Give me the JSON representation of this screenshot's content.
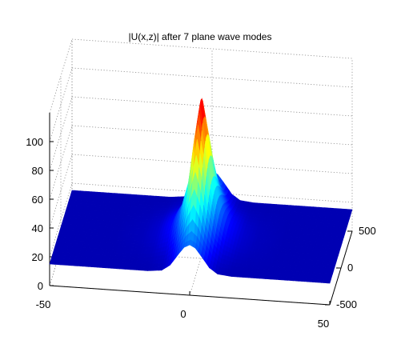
{
  "chart_data": {
    "type": "surface",
    "title": "|U(x,z)| after 7 plane wave modes",
    "xlabel": "",
    "ylabel": "",
    "zlabel": "",
    "x_ticks": [
      "-50",
      "0",
      "50"
    ],
    "y_ticks": [
      "-500",
      "0",
      "500"
    ],
    "z_ticks": [
      "0",
      "20",
      "40",
      "60",
      "80",
      "100"
    ],
    "xlim": [
      -50,
      50
    ],
    "ylim": [
      -500,
      500
    ],
    "zlim": [
      0,
      120
    ],
    "grid": true,
    "colormap": "jet",
    "colors": {
      "baseline_surface": "#00008f",
      "peak": "#800000"
    },
    "surface_profile": {
      "x": [
        -50,
        -40,
        -30,
        -20,
        -15,
        -10,
        -7,
        -4,
        -2,
        0,
        2,
        4,
        7,
        10,
        15,
        20,
        30,
        40,
        50
      ],
      "z_edge": [
        15,
        15,
        15,
        15,
        15,
        16,
        20,
        28,
        33,
        35,
        33,
        28,
        20,
        16,
        15,
        15,
        15,
        15,
        15
      ],
      "z_center": [
        15,
        15,
        15,
        16,
        18,
        24,
        34,
        55,
        85,
        110,
        85,
        55,
        34,
        24,
        18,
        16,
        15,
        15,
        15
      ]
    }
  }
}
